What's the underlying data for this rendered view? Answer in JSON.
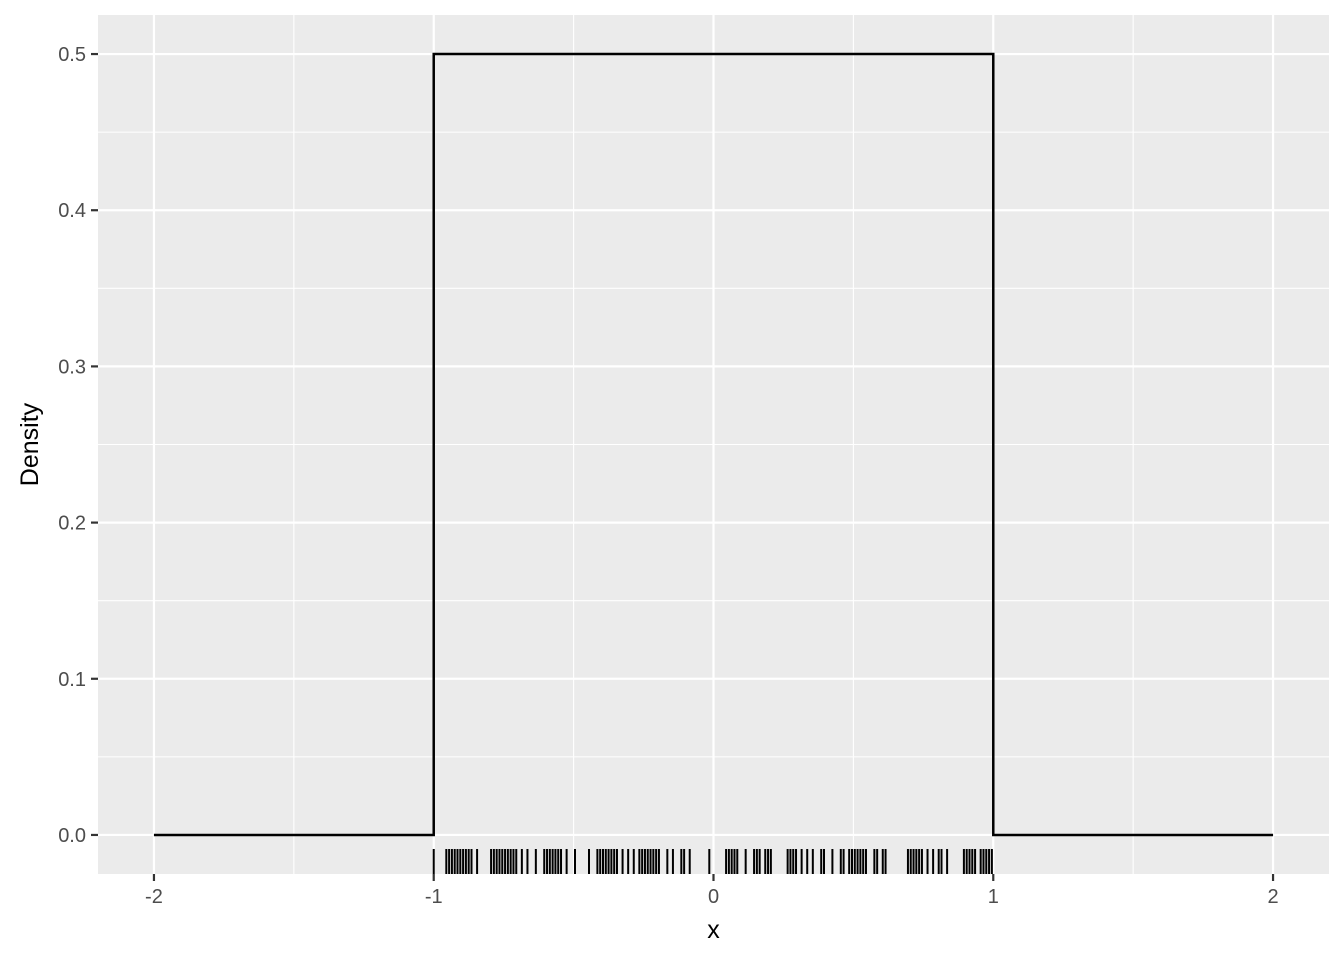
{
  "chart_data": {
    "type": "line",
    "title": "",
    "xlabel": "x",
    "ylabel": "Density",
    "xlim": [
      -2.2,
      2.2
    ],
    "ylim": [
      -0.025,
      0.525
    ],
    "x_ticks": [
      -2,
      -1,
      0,
      1,
      2
    ],
    "x_tick_labels": [
      "-2",
      "-1",
      "0",
      "1",
      "2"
    ],
    "y_ticks": [
      0.0,
      0.1,
      0.2,
      0.3,
      0.4,
      0.5
    ],
    "y_tick_labels": [
      "0.0",
      "0.1",
      "0.2",
      "0.3",
      "0.4",
      "0.5"
    ],
    "grid": true,
    "panel_background": "#EBEBEB",
    "grid_color": "#FFFFFF",
    "line_color": "#000000",
    "series": [
      {
        "x": [
          -2,
          -1,
          -1,
          1,
          1,
          2
        ],
        "y": [
          0,
          0,
          0.5,
          0.5,
          0,
          0
        ]
      }
    ],
    "rug": {
      "color": "#000000",
      "x": [
        -1.0,
        -0.955,
        -0.945,
        -0.935,
        -0.925,
        -0.915,
        -0.905,
        -0.895,
        -0.885,
        -0.875,
        -0.865,
        -0.845,
        -0.795,
        -0.785,
        -0.775,
        -0.765,
        -0.755,
        -0.745,
        -0.735,
        -0.725,
        -0.715,
        -0.705,
        -0.685,
        -0.665,
        -0.635,
        -0.605,
        -0.595,
        -0.585,
        -0.575,
        -0.565,
        -0.555,
        -0.545,
        -0.525,
        -0.495,
        -0.445,
        -0.415,
        -0.405,
        -0.395,
        -0.385,
        -0.375,
        -0.365,
        -0.355,
        -0.345,
        -0.325,
        -0.305,
        -0.285,
        -0.265,
        -0.255,
        -0.245,
        -0.235,
        -0.225,
        -0.215,
        -0.205,
        -0.195,
        -0.165,
        -0.145,
        -0.115,
        -0.105,
        -0.085,
        -0.015,
        0.045,
        0.055,
        0.065,
        0.075,
        0.085,
        0.115,
        0.145,
        0.155,
        0.165,
        0.185,
        0.195,
        0.205,
        0.265,
        0.275,
        0.285,
        0.295,
        0.315,
        0.335,
        0.355,
        0.385,
        0.395,
        0.425,
        0.455,
        0.465,
        0.485,
        0.495,
        0.505,
        0.515,
        0.525,
        0.535,
        0.545,
        0.575,
        0.585,
        0.605,
        0.615,
        0.695,
        0.705,
        0.715,
        0.725,
        0.735,
        0.745,
        0.765,
        0.785,
        0.805,
        0.815,
        0.835,
        0.895,
        0.905,
        0.915,
        0.925,
        0.935,
        0.955,
        0.965,
        0.975,
        0.985,
        0.995
      ]
    }
  }
}
